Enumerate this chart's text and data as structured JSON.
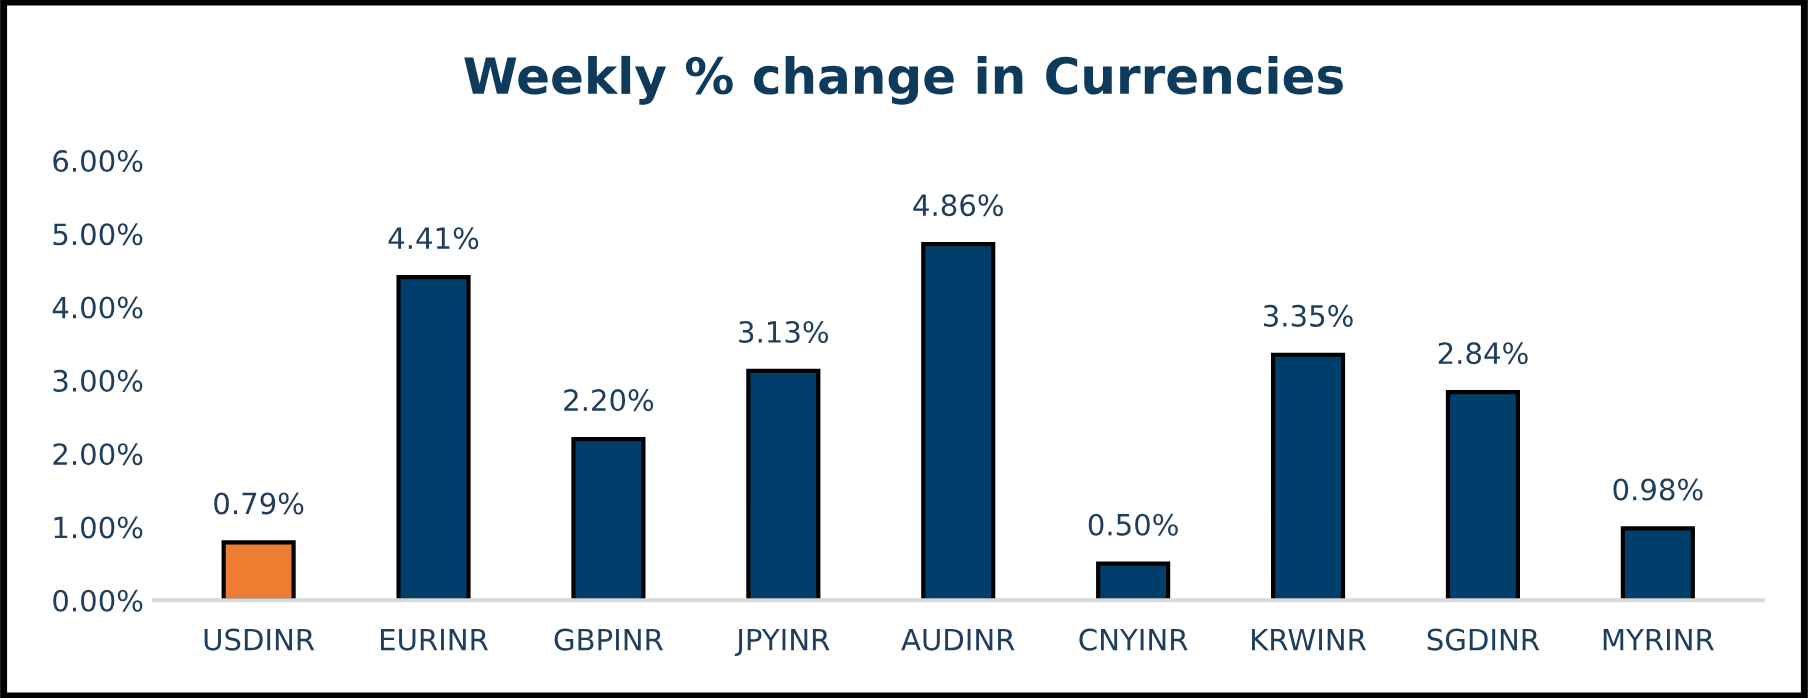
{
  "chart_data": {
    "type": "bar",
    "title": "Weekly % change in Currencies",
    "categories": [
      "USDINR",
      "EURINR",
      "GBPINR",
      "JPYINR",
      "AUDINR",
      "CNYINR",
      "KRWINR",
      "SGDINR",
      "MYRINR"
    ],
    "values": [
      0.79,
      4.41,
      2.2,
      3.13,
      4.86,
      0.5,
      3.35,
      2.84,
      0.98
    ],
    "value_labels": [
      "0.79%",
      "4.41%",
      "2.20%",
      "3.13%",
      "4.86%",
      "0.50%",
      "3.35%",
      "2.84%",
      "0.98%"
    ],
    "colors": [
      "#ed7d31",
      "#003f6b",
      "#003f6b",
      "#003f6b",
      "#003f6b",
      "#003f6b",
      "#003f6b",
      "#003f6b",
      "#003f6b"
    ],
    "ylim": [
      0,
      6
    ],
    "yticks": [
      {
        "value": 0,
        "label": "0.00%"
      },
      {
        "value": 1,
        "label": "1.00%"
      },
      {
        "value": 2,
        "label": "2.00%"
      },
      {
        "value": 3,
        "label": "3.00%"
      },
      {
        "value": 4,
        "label": "4.00%"
      },
      {
        "value": 5,
        "label": "5.00%"
      },
      {
        "value": 6,
        "label": "6.00%"
      }
    ],
    "grid": false,
    "legend": false
  }
}
